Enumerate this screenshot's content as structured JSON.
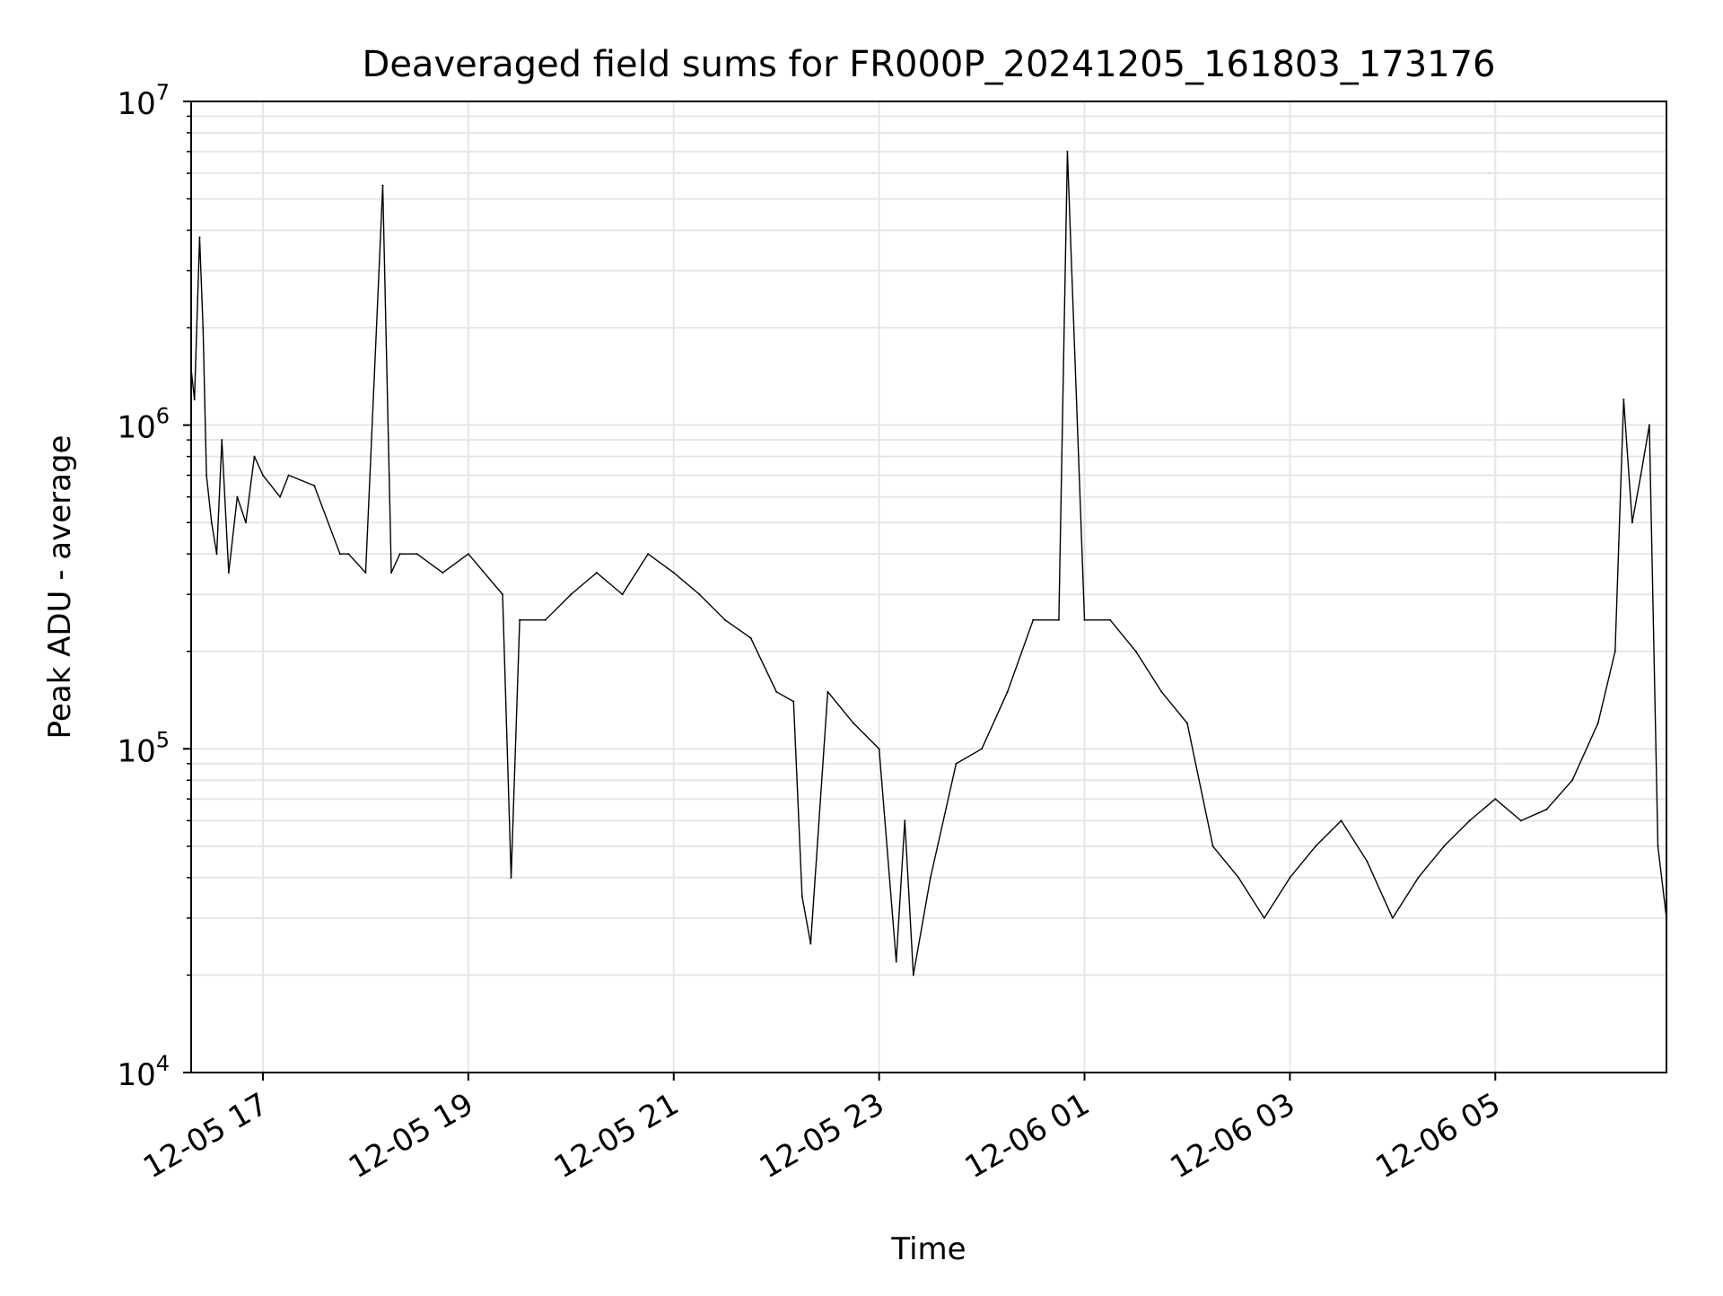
{
  "chart_data": {
    "type": "line",
    "title": "Deaveraged field sums for FR000P_20241205_161803_173176",
    "xlabel": "Time",
    "ylabel": "Peak ADU - average",
    "y_scale": "log",
    "ylim": [
      10000,
      10000000
    ],
    "xlim": [
      "2024-12-05 16:18:03",
      "2024-12-06 06:40:00"
    ],
    "x_ticks": [
      {
        "value": "2024-12-05 17:00",
        "label": "12-05 17"
      },
      {
        "value": "2024-12-05 19:00",
        "label": "12-05 19"
      },
      {
        "value": "2024-12-05 21:00",
        "label": "12-05 21"
      },
      {
        "value": "2024-12-05 23:00",
        "label": "12-05 23"
      },
      {
        "value": "2024-12-06 01:00",
        "label": "12-06 01"
      },
      {
        "value": "2024-12-06 03:00",
        "label": "12-06 03"
      },
      {
        "value": "2024-12-06 05:00",
        "label": "12-06 05"
      }
    ],
    "y_ticks": [
      {
        "value": 10000,
        "base": "10",
        "exp": "4"
      },
      {
        "value": 100000,
        "base": "10",
        "exp": "5"
      },
      {
        "value": 1000000,
        "base": "10",
        "exp": "6"
      },
      {
        "value": 10000000,
        "base": "10",
        "exp": "7"
      }
    ],
    "grid": true,
    "line_color": "#000000",
    "grid_color": "#e6e6e6",
    "series": [
      {
        "x": [
          "2024-12-05 16:18",
          "2024-12-05 16:20",
          "2024-12-05 16:23",
          "2024-12-05 16:25",
          "2024-12-05 16:27",
          "2024-12-05 16:30",
          "2024-12-05 16:33",
          "2024-12-05 16:36",
          "2024-12-05 16:40",
          "2024-12-05 16:45",
          "2024-12-05 16:50",
          "2024-12-05 16:55",
          "2024-12-05 17:00",
          "2024-12-05 17:10",
          "2024-12-05 17:15",
          "2024-12-05 17:30",
          "2024-12-05 17:45",
          "2024-12-05 17:50",
          "2024-12-05 18:00",
          "2024-12-05 18:10",
          "2024-12-05 18:15",
          "2024-12-05 18:20",
          "2024-12-05 18:30",
          "2024-12-05 18:45",
          "2024-12-05 19:00",
          "2024-12-05 19:20",
          "2024-12-05 19:25",
          "2024-12-05 19:30",
          "2024-12-05 19:45",
          "2024-12-05 20:00",
          "2024-12-05 20:15",
          "2024-12-05 20:30",
          "2024-12-05 20:45",
          "2024-12-05 21:00",
          "2024-12-05 21:15",
          "2024-12-05 21:30",
          "2024-12-05 21:45",
          "2024-12-05 22:00",
          "2024-12-05 22:10",
          "2024-12-05 22:15",
          "2024-12-05 22:20",
          "2024-12-05 22:30",
          "2024-12-05 22:45",
          "2024-12-05 23:00",
          "2024-12-05 23:10",
          "2024-12-05 23:15",
          "2024-12-05 23:20",
          "2024-12-05 23:30",
          "2024-12-05 23:45",
          "2024-12-06 00:00",
          "2024-12-06 00:15",
          "2024-12-06 00:30",
          "2024-12-06 00:45",
          "2024-12-06 00:50",
          "2024-12-06 01:00",
          "2024-12-06 01:15",
          "2024-12-06 01:30",
          "2024-12-06 01:45",
          "2024-12-06 02:00",
          "2024-12-06 02:15",
          "2024-12-06 02:30",
          "2024-12-06 02:45",
          "2024-12-06 03:00",
          "2024-12-06 03:15",
          "2024-12-06 03:30",
          "2024-12-06 03:45",
          "2024-12-06 04:00",
          "2024-12-06 04:15",
          "2024-12-06 04:30",
          "2024-12-06 04:45",
          "2024-12-06 05:00",
          "2024-12-06 05:15",
          "2024-12-06 05:30",
          "2024-12-06 05:45",
          "2024-12-06 06:00",
          "2024-12-06 06:10",
          "2024-12-06 06:15",
          "2024-12-06 06:20",
          "2024-12-06 06:25",
          "2024-12-06 06:30",
          "2024-12-06 06:35",
          "2024-12-06 06:40"
        ],
        "values": [
          1500000,
          1200000,
          3800000,
          2000000,
          700000,
          500000,
          400000,
          900000,
          350000,
          600000,
          500000,
          800000,
          700000,
          600000,
          700000,
          650000,
          400000,
          400000,
          350000,
          5500000,
          350000,
          400000,
          400000,
          350000,
          400000,
          300000,
          40000,
          250000,
          250000,
          300000,
          350000,
          300000,
          400000,
          350000,
          300000,
          250000,
          220000,
          150000,
          140000,
          35000,
          25000,
          150000,
          120000,
          100000,
          22000,
          60000,
          20000,
          40000,
          90000,
          100000,
          150000,
          250000,
          250000,
          7000000,
          250000,
          250000,
          200000,
          150000,
          120000,
          50000,
          40000,
          30000,
          40000,
          50000,
          60000,
          45000,
          30000,
          40000,
          50000,
          60000,
          70000,
          60000,
          65000,
          80000,
          120000,
          200000,
          1200000,
          500000,
          700000,
          1000000,
          50000,
          30000
        ]
      }
    ]
  }
}
